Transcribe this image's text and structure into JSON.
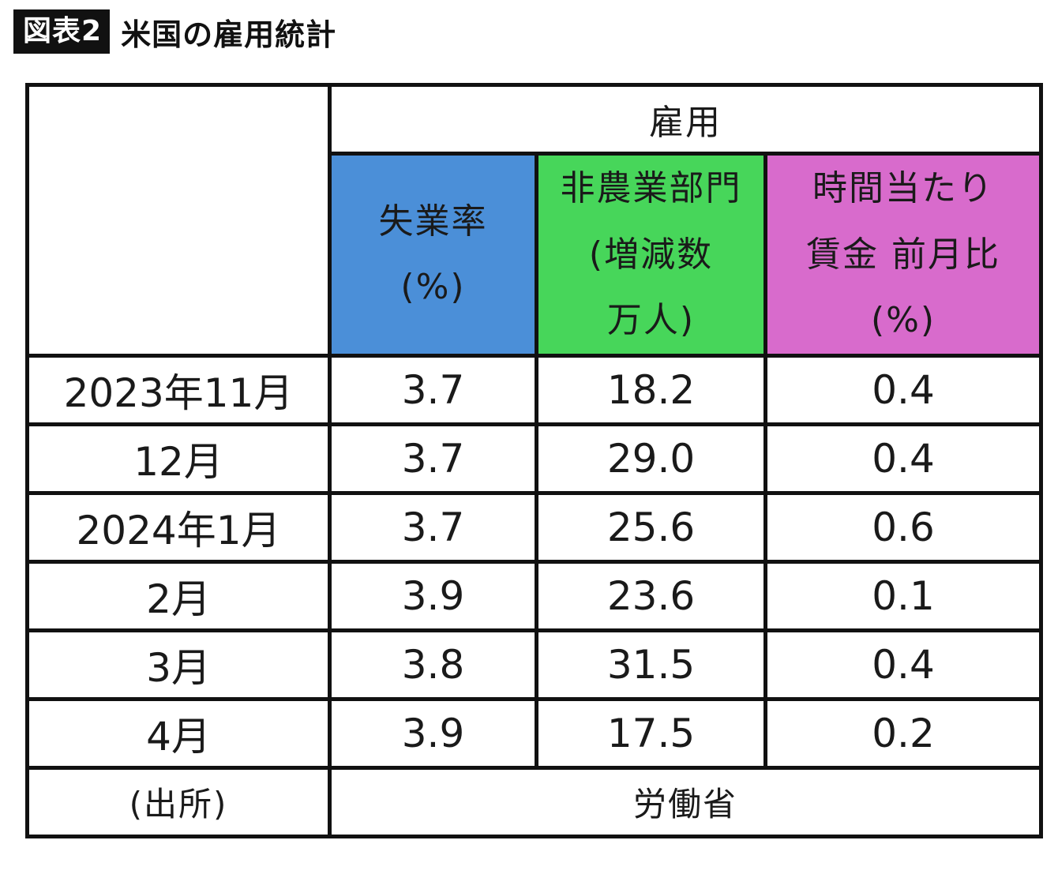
{
  "figure": {
    "label": "図表2",
    "title": "米国の雇用統計"
  },
  "table": {
    "group_header": "雇用",
    "columns": [
      {
        "key": "unemployment",
        "lines": [
          "失業率",
          "(%)"
        ],
        "color": "#4b8fd8"
      },
      {
        "key": "payrolls",
        "lines": [
          "非農業部門",
          "(増減数",
          "万人)"
        ],
        "color": "#47d65a"
      },
      {
        "key": "wages",
        "lines": [
          "時間当たり",
          "賃金 前月比",
          "(%)"
        ],
        "color": "#d86bcc"
      }
    ],
    "rows": [
      {
        "period": "2023年11月",
        "unemployment": "3.7",
        "payrolls": "18.2",
        "wages": "0.4"
      },
      {
        "period": "12月",
        "unemployment": "3.7",
        "payrolls": "29.0",
        "wages": "0.4"
      },
      {
        "period": "2024年1月",
        "unemployment": "3.7",
        "payrolls": "25.6",
        "wages": "0.6"
      },
      {
        "period": "2月",
        "unemployment": "3.9",
        "payrolls": "23.6",
        "wages": "0.1"
      },
      {
        "period": "3月",
        "unemployment": "3.8",
        "payrolls": "31.5",
        "wages": "0.4"
      },
      {
        "period": "4月",
        "unemployment": "3.9",
        "payrolls": "17.5",
        "wages": "0.2"
      }
    ],
    "source_label": "(出所)",
    "source_value": "労働省"
  }
}
